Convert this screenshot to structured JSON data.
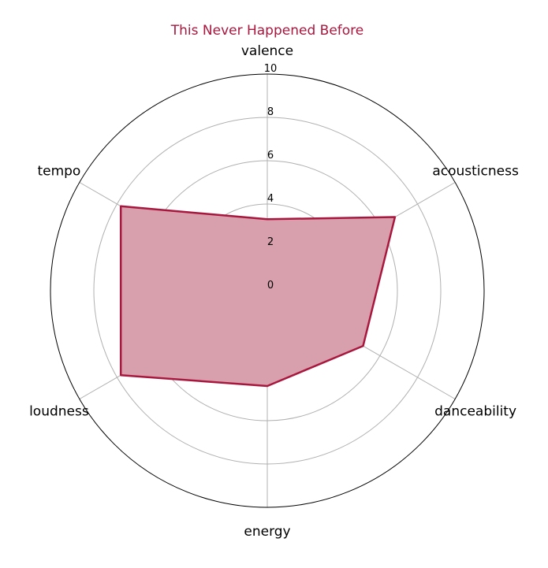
{
  "chart_data": {
    "type": "radar",
    "title": "This Never Happened Before",
    "axes": [
      "valence",
      "acousticness",
      "danceability",
      "energy",
      "loudness",
      "tempo"
    ],
    "series": [
      {
        "values": [
          3.3,
          6.8,
          5.1,
          4.4,
          7.8,
          7.8
        ]
      }
    ],
    "rlim": [
      0,
      10
    ],
    "r_ticks": [
      "0",
      "2",
      "4",
      "6",
      "8",
      "10"
    ],
    "grid": true,
    "colors": {
      "line": "#a8173d",
      "fill": "#d8a0ad",
      "grid": "#b0b0b0",
      "frame": "#000000"
    }
  }
}
